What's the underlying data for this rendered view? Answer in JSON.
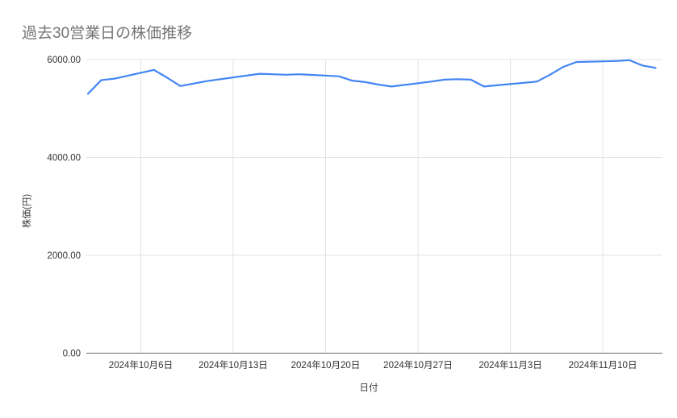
{
  "page": {
    "background": "#ffffff"
  },
  "chart_data": {
    "type": "line",
    "title": "過去30営業日の株価推移",
    "xlabel": "日付",
    "ylabel": "株価(円)",
    "ylim": [
      0,
      6000
    ],
    "x_range": [
      "2024-10-02",
      "2024-11-14"
    ],
    "grid": true,
    "legend": "none",
    "y_ticks": [
      {
        "value": 0,
        "label": "0.00"
      },
      {
        "value": 2000,
        "label": "2000.00"
      },
      {
        "value": 4000,
        "label": "4000.00"
      },
      {
        "value": 6000,
        "label": "6000.00"
      }
    ],
    "x_ticks": [
      {
        "date": "2024-10-06",
        "label": "2024年10月6日"
      },
      {
        "date": "2024-10-13",
        "label": "2024年10月13日"
      },
      {
        "date": "2024-10-20",
        "label": "2024年10月20日"
      },
      {
        "date": "2024-10-27",
        "label": "2024年10月27日"
      },
      {
        "date": "2024-11-03",
        "label": "2024年11月3日"
      },
      {
        "date": "2024-11-10",
        "label": "2024年11月10日"
      }
    ],
    "points": [
      {
        "date": "2024-10-02",
        "value": 5300
      },
      {
        "date": "2024-10-03",
        "value": 5580
      },
      {
        "date": "2024-10-04",
        "value": 5610
      },
      {
        "date": "2024-10-07",
        "value": 5790
      },
      {
        "date": "2024-10-08",
        "value": 5630
      },
      {
        "date": "2024-10-09",
        "value": 5460
      },
      {
        "date": "2024-10-10",
        "value": 5510
      },
      {
        "date": "2024-10-11",
        "value": 5560
      },
      {
        "date": "2024-10-15",
        "value": 5710
      },
      {
        "date": "2024-10-16",
        "value": 5700
      },
      {
        "date": "2024-10-17",
        "value": 5690
      },
      {
        "date": "2024-10-18",
        "value": 5700
      },
      {
        "date": "2024-10-21",
        "value": 5660
      },
      {
        "date": "2024-10-22",
        "value": 5570
      },
      {
        "date": "2024-10-23",
        "value": 5540
      },
      {
        "date": "2024-10-24",
        "value": 5490
      },
      {
        "date": "2024-10-25",
        "value": 5450
      },
      {
        "date": "2024-10-28",
        "value": 5550
      },
      {
        "date": "2024-10-29",
        "value": 5590
      },
      {
        "date": "2024-10-30",
        "value": 5600
      },
      {
        "date": "2024-10-31",
        "value": 5590
      },
      {
        "date": "2024-11-01",
        "value": 5450
      },
      {
        "date": "2024-11-05",
        "value": 5550
      },
      {
        "date": "2024-11-06",
        "value": 5690
      },
      {
        "date": "2024-11-07",
        "value": 5850
      },
      {
        "date": "2024-11-08",
        "value": 5950
      },
      {
        "date": "2024-11-11",
        "value": 5970
      },
      {
        "date": "2024-11-12",
        "value": 5990
      },
      {
        "date": "2024-11-13",
        "value": 5880
      },
      {
        "date": "2024-11-14",
        "value": 5830
      }
    ],
    "colors": {
      "line": "#4285f4",
      "title_text": "#757575",
      "axis_text": "#333333",
      "axis_title_text": "#3c3c3c",
      "gridline": "#e3e3e3",
      "axis_line": "#6b6b6b",
      "background": "#ffffff"
    }
  }
}
